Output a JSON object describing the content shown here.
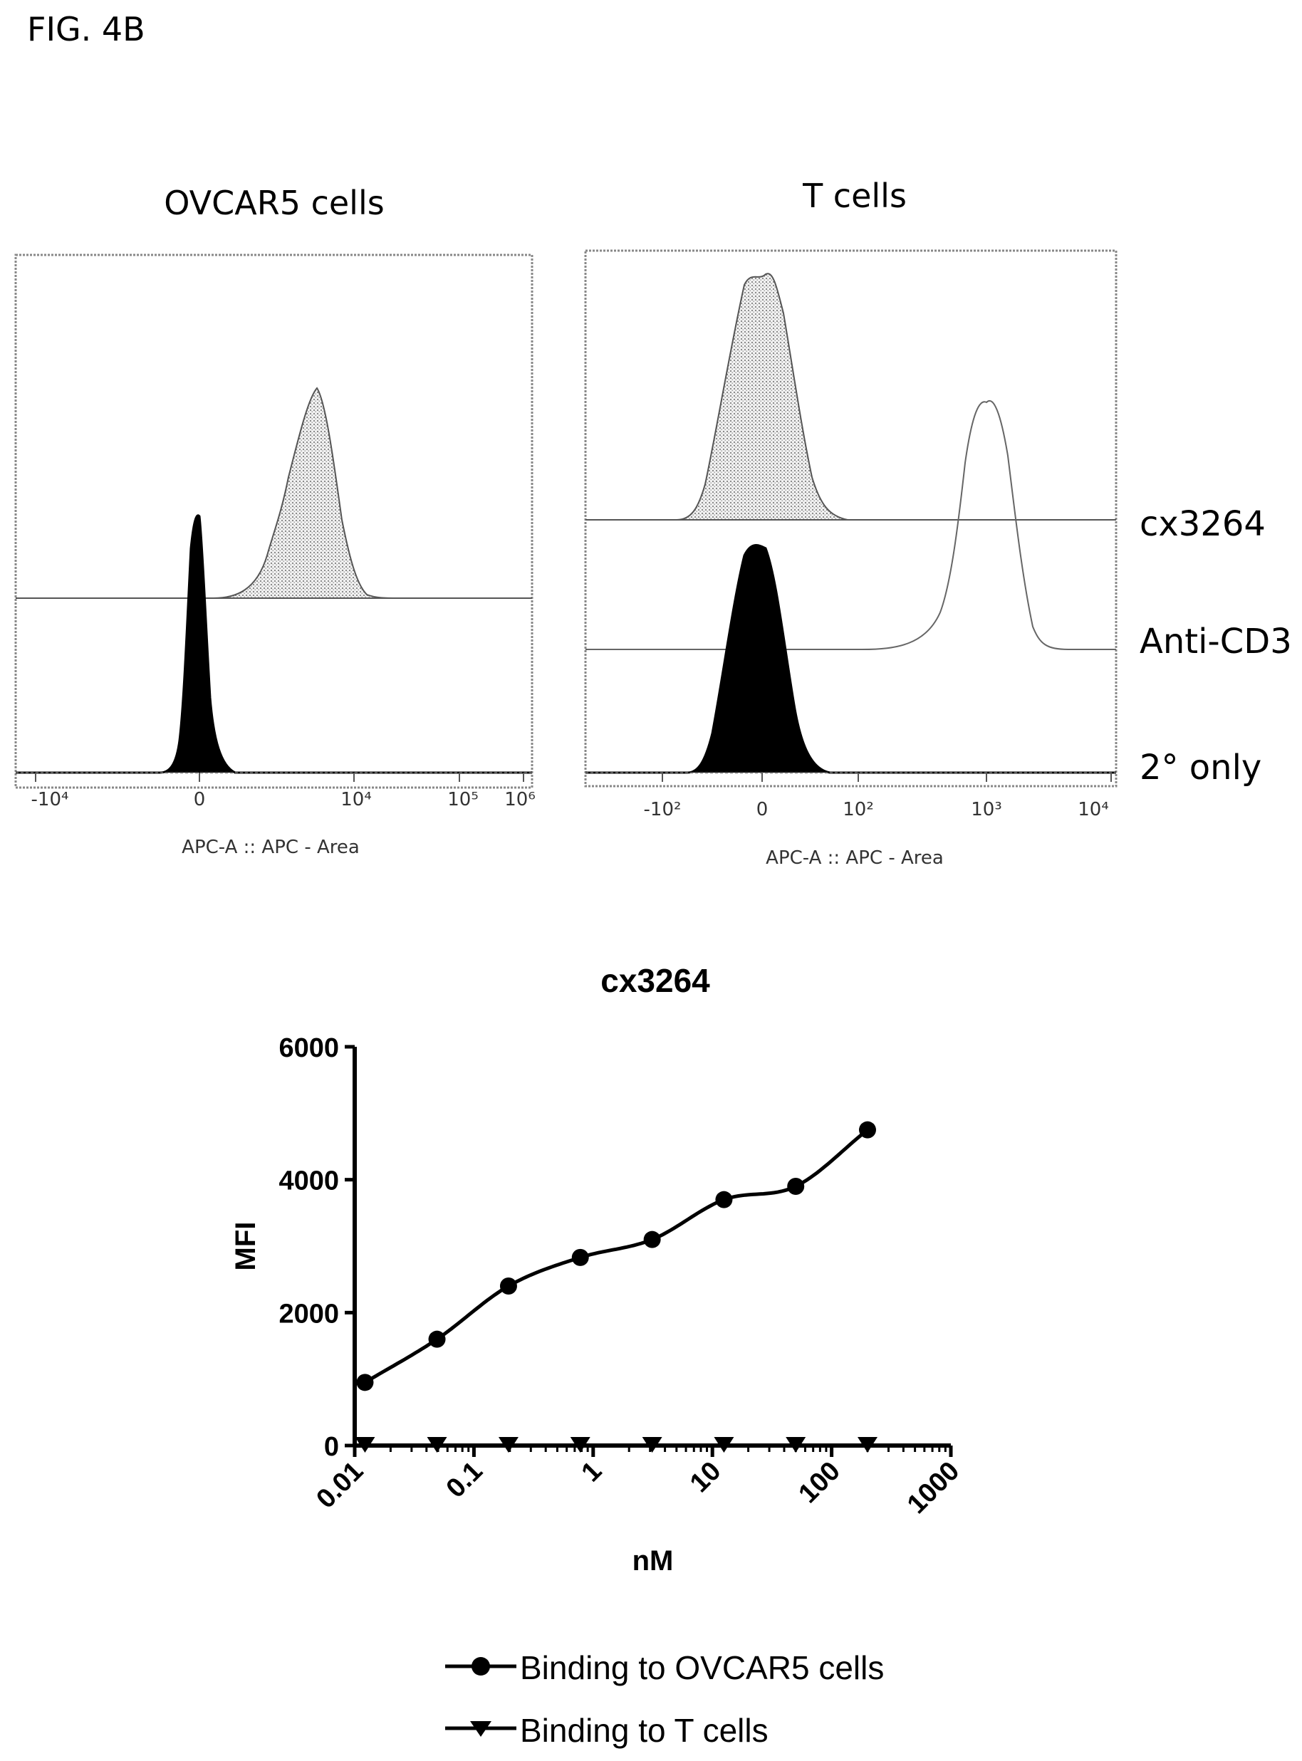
{
  "figure_label": "FIG. 4B",
  "chart_data": [
    {
      "type": "histogram",
      "title": "OVCAR5 cells",
      "xlabel": "APC-A :: APC - Area",
      "ticks": [
        "-10⁴",
        "0",
        "10⁴",
        "10⁵",
        "10⁶"
      ],
      "series": [
        {
          "name": "cx3264",
          "style": "stippled"
        },
        {
          "name": "2° only",
          "style": "filled-black"
        }
      ]
    },
    {
      "type": "histogram",
      "title": "T cells",
      "xlabel": "APC-A :: APC - Area",
      "ticks": [
        "-10²",
        "0",
        "10²",
        "10³",
        "10⁴"
      ],
      "series": [
        {
          "name": "cx3264",
          "style": "stippled"
        },
        {
          "name": "Anti-CD3",
          "style": "open"
        },
        {
          "name": "2° only",
          "style": "filled-black"
        }
      ]
    },
    {
      "type": "scatter",
      "title": "cx3264",
      "xlabel": "nM",
      "ylabel": "MFI",
      "xscale": "log",
      "xlim": [
        0.01,
        1000
      ],
      "ylim": [
        0,
        6000
      ],
      "xticks": [
        "0.01",
        "0.1",
        "1",
        "10",
        "100",
        "1000"
      ],
      "yticks": [
        "0",
        "2000",
        "4000",
        "6000"
      ],
      "x": [
        0.0122,
        0.049,
        0.195,
        0.78,
        3.125,
        12.5,
        50,
        200
      ],
      "series": [
        {
          "name": "Binding to OVCAR5 cells",
          "marker": "circle",
          "values": [
            950,
            1600,
            2400,
            2830,
            3100,
            3700,
            3900,
            4750
          ]
        },
        {
          "name": "Binding to T cells",
          "marker": "triangle-down",
          "values": [
            0,
            0,
            0,
            0,
            0,
            0,
            0,
            0
          ]
        }
      ]
    }
  ]
}
